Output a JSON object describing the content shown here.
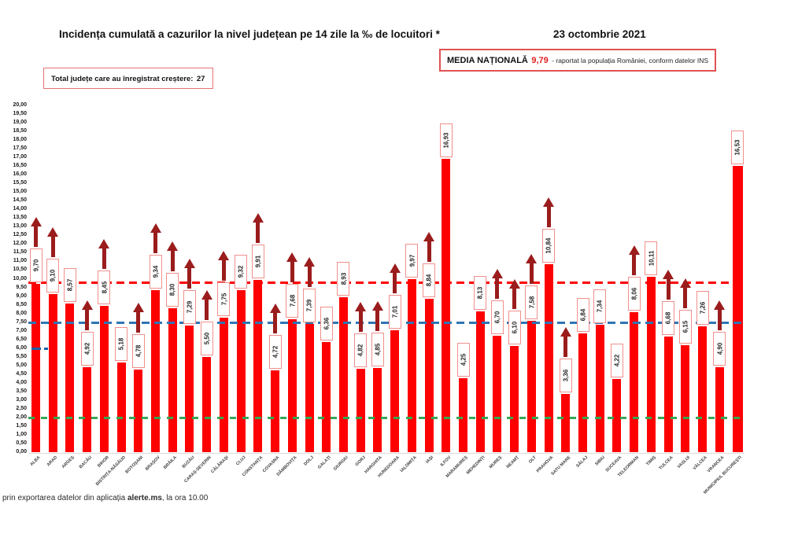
{
  "header": {
    "title": "Incidența cumulată a cazurilor la nivel județean pe 14 zile la ‰ de locuitori *",
    "date": "23 octombrie 2021",
    "national_average_label": "MEDIA NAȚIONALĂ",
    "national_average_value": "9,79",
    "national_average_note": "-  raportat la populația României, conform datelor INS",
    "total_increase_label": "Total județe care au înregistrat creștere:",
    "total_increase_value": "27"
  },
  "footer": {
    "prefix": "prin exportarea datelor din aplicația ",
    "app_name": "alerte.ms",
    "suffix": ", la ora 10.00"
  },
  "colors": {
    "bar": "#fe0000",
    "arrow": "#9b1c1c",
    "label_border": "#f0908c",
    "national_average_line": "#ff0000",
    "blue_line": "#2e75b6",
    "green_line": "#35a855",
    "navy_dash": "#1f5fa8",
    "media_value": "#e02020"
  },
  "chart_data": {
    "type": "bar",
    "title": "Incidența cumulată a cazurilor la nivel județean pe 14 zile la ‰ de locuitori *",
    "xlabel": "",
    "ylabel": "",
    "ylim": [
      0,
      20
    ],
    "ytick_step": 0.5,
    "grid": false,
    "legend": null,
    "categories": [
      "ALBA",
      "ARAD",
      "ARGEȘ",
      "BACĂU",
      "BIHOR",
      "BISTRIȚA-NĂSĂUD",
      "BOTOȘANI",
      "BRAȘOV",
      "BRĂILA",
      "BUZĂU",
      "CARAȘ-SEVERIN",
      "CĂLĂRAȘI",
      "CLUJ",
      "CONSTANȚA",
      "COVASNA",
      "DÂMBOVIȚA",
      "DOLJ",
      "GALAȚI",
      "GIURGIU",
      "GORJ",
      "HARGHITA",
      "HUNEDOARA",
      "IALOMIȚA",
      "IAȘI",
      "ILFOV",
      "MARAMUREȘ",
      "MEHEDINȚI",
      "MUREȘ",
      "NEAMȚ",
      "OLT",
      "PRAHOVA",
      "SATU MARE",
      "SĂLAJ",
      "SIBIU",
      "SUCEAVA",
      "TELEORMAN",
      "TIMIȘ",
      "TULCEA",
      "VASLUI",
      "VÂLCEA",
      "VRANCEA",
      "MUNICIPIUL BUCUREȘTI"
    ],
    "values": [
      9.7,
      9.1,
      8.57,
      4.92,
      8.45,
      5.18,
      4.78,
      9.34,
      8.3,
      7.29,
      5.5,
      7.75,
      9.32,
      9.91,
      4.72,
      7.68,
      7.39,
      6.36,
      8.93,
      4.82,
      4.85,
      7.01,
      9.97,
      8.84,
      16.93,
      4.25,
      8.13,
      6.7,
      6.1,
      7.58,
      10.84,
      3.36,
      6.84,
      7.34,
      4.22,
      8.06,
      10.11,
      6.68,
      6.15,
      7.26,
      4.9,
      16.53
    ],
    "labels": [
      "9,70",
      "9,10",
      "8,57",
      "4,92",
      "8,45",
      "5,18",
      "4,78",
      "9,34",
      "8,30",
      "7,29",
      "5,50",
      "7,75",
      "9,32",
      "9,91",
      "4,72",
      "7,68",
      "7,39",
      "6,36",
      "8,93",
      "4,82",
      "4,85",
      "7,01",
      "9,97",
      "8,84",
      "16,93",
      "4,25",
      "8,13",
      "6,70",
      "6,10",
      "7,58",
      "10,84",
      "3,36",
      "6,84",
      "7,34",
      "4,22",
      "8,06",
      "10,11",
      "6,68",
      "6,15",
      "7,26",
      "4,90",
      "16,53"
    ],
    "increase": [
      true,
      true,
      false,
      true,
      true,
      false,
      true,
      true,
      true,
      true,
      true,
      true,
      false,
      true,
      true,
      true,
      true,
      false,
      false,
      true,
      true,
      true,
      false,
      true,
      false,
      false,
      false,
      true,
      true,
      true,
      true,
      true,
      false,
      false,
      false,
      true,
      false,
      true,
      true,
      false,
      true,
      false
    ],
    "reference_lines": [
      {
        "value": 9.79,
        "color": "#ff0000",
        "style": "dashed",
        "meaning": "media națională"
      },
      {
        "value": 7.5,
        "color": "#2e75b6",
        "style": "dashed"
      },
      {
        "value": 2.0,
        "color": "#35a855",
        "style": "dashed"
      }
    ],
    "partial_marks": [
      {
        "value": 6.0,
        "color": "#1f5fa8",
        "segments_x": [
          [
            40,
            52
          ],
          [
            56,
            61
          ]
        ]
      }
    ]
  }
}
